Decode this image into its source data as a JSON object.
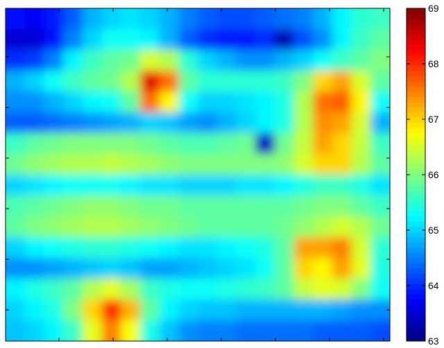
{
  "chart_data": {
    "type": "heatmap",
    "title": "",
    "xlabel": "",
    "ylabel": "",
    "colormap": "jet",
    "clim": [
      63,
      69
    ],
    "grid": false,
    "colorbar": {
      "placement": "right",
      "ticks": [
        "63",
        "64",
        "65",
        "66",
        "67",
        "68",
        "69"
      ]
    },
    "values": [
      [
        63.8,
        63.7,
        63.9,
        64.3,
        64.8,
        65.0,
        65.1,
        65.0,
        64.8,
        64.5,
        64.3,
        64.2,
        64.2,
        64.3,
        64.4,
        64.5,
        64.8,
        65.2,
        65.5,
        65.6
      ],
      [
        63.5,
        63.5,
        63.8,
        64.5,
        65.0,
        65.3,
        65.3,
        65.2,
        64.8,
        64.3,
        64.0,
        63.9,
        63.9,
        64.0,
        63.3,
        64.2,
        64.6,
        65.2,
        65.6,
        65.8
      ],
      [
        64.0,
        64.1,
        64.5,
        65.2,
        65.6,
        65.8,
        65.9,
        66.5,
        66.3,
        65.5,
        65.0,
        64.8,
        64.6,
        64.6,
        64.8,
        65.0,
        65.3,
        65.6,
        65.8,
        66.0
      ],
      [
        64.8,
        65.0,
        65.3,
        65.6,
        65.8,
        65.9,
        66.3,
        68.4,
        67.6,
        65.8,
        65.5,
        65.5,
        65.5,
        65.5,
        65.6,
        66.0,
        67.0,
        67.3,
        66.5,
        65.8
      ],
      [
        64.6,
        64.6,
        64.8,
        65.0,
        65.2,
        65.3,
        65.8,
        67.6,
        66.8,
        65.3,
        65.0,
        65.0,
        65.1,
        65.2,
        65.4,
        66.3,
        67.6,
        67.7,
        66.8,
        65.3
      ],
      [
        64.3,
        64.3,
        64.4,
        64.5,
        64.6,
        64.7,
        64.8,
        65.0,
        64.9,
        64.7,
        64.6,
        64.8,
        65.0,
        65.2,
        65.4,
        66.3,
        67.4,
        67.3,
        66.5,
        64.8
      ],
      [
        65.6,
        65.8,
        65.9,
        66.0,
        66.0,
        66.0,
        66.0,
        65.9,
        65.8,
        65.7,
        65.7,
        65.8,
        65.9,
        63.4,
        65.9,
        66.4,
        67.3,
        67.0,
        66.4,
        65.6
      ],
      [
        65.9,
        66.1,
        66.2,
        66.3,
        66.3,
        66.4,
        66.3,
        66.2,
        66.1,
        66.0,
        66.0,
        66.0,
        66.0,
        66.0,
        66.1,
        66.5,
        67.0,
        67.0,
        66.3,
        65.8
      ],
      [
        65.0,
        65.1,
        65.2,
        65.3,
        65.3,
        65.3,
        65.2,
        65.1,
        65.1,
        65.0,
        65.0,
        65.0,
        65.1,
        65.1,
        65.2,
        65.4,
        65.6,
        65.6,
        65.4,
        65.1
      ],
      [
        65.7,
        65.8,
        65.9,
        66.0,
        66.1,
        66.1,
        66.0,
        65.9,
        65.9,
        65.8,
        65.8,
        65.8,
        65.8,
        65.8,
        65.8,
        65.9,
        66.0,
        66.0,
        65.8,
        65.6
      ],
      [
        65.8,
        66.0,
        66.1,
        66.2,
        66.3,
        66.3,
        66.2,
        66.1,
        66.0,
        65.9,
        65.8,
        65.8,
        65.8,
        65.8,
        65.9,
        66.1,
        66.3,
        66.5,
        66.3,
        65.9
      ],
      [
        65.0,
        65.2,
        65.3,
        65.4,
        65.5,
        65.5,
        65.4,
        65.3,
        65.2,
        65.1,
        65.1,
        65.2,
        65.3,
        65.4,
        65.8,
        67.3,
        67.3,
        67.5,
        66.5,
        65.5
      ],
      [
        64.6,
        64.6,
        64.7,
        64.8,
        64.9,
        65.0,
        64.9,
        64.7,
        64.7,
        64.8,
        64.9,
        65.0,
        65.1,
        65.3,
        65.8,
        67.0,
        66.8,
        67.3,
        66.6,
        65.4
      ],
      [
        65.2,
        65.4,
        65.6,
        65.8,
        66.3,
        66.6,
        66.2,
        65.6,
        65.4,
        65.3,
        65.3,
        65.4,
        65.5,
        65.6,
        65.8,
        66.4,
        66.6,
        66.5,
        66.0,
        65.3
      ],
      [
        65.0,
        65.2,
        65.4,
        66.0,
        67.0,
        68.0,
        67.2,
        65.8,
        65.2,
        65.0,
        64.9,
        64.9,
        64.8,
        64.8,
        64.8,
        64.8,
        64.8,
        64.7,
        64.6,
        64.6
      ],
      [
        64.9,
        65.0,
        65.2,
        65.6,
        66.6,
        67.5,
        66.7,
        65.4,
        64.9,
        64.6,
        64.5,
        64.5,
        64.4,
        64.4,
        64.4,
        64.4,
        64.3,
        64.3,
        64.3,
        64.2
      ]
    ]
  }
}
